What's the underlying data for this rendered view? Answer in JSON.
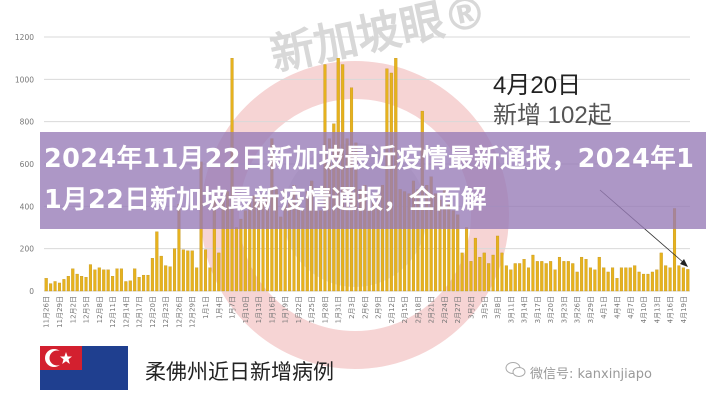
{
  "banner": {
    "title": "2024年11月22日新加坡最近疫情最新通报，2024年11月22日新加坡最新疫情通报，全面解"
  },
  "watermark": {
    "logo_text": "新加坡眼®"
  },
  "annotation": {
    "date": "4月20日",
    "text": "新增 102起"
  },
  "footer": {
    "subtitle": "柔佛州近日新增病例",
    "wechat_label": "微信号: kanxinjiapo"
  },
  "colors": {
    "bar": "#e6b21e",
    "bar_edge": "#b98a10",
    "banner": "#967ab6",
    "flag_red": "#d3202f",
    "flag_blue": "#1f3f8f"
  },
  "chart_data": {
    "type": "bar",
    "title": "",
    "xlabel": "",
    "ylabel": "",
    "ylim": [
      0,
      1200
    ],
    "y_ticks": [
      0,
      200,
      400,
      600,
      800,
      1000,
      1200
    ],
    "grid": true,
    "legend": "none",
    "x_tick_labels": [
      "11月26日",
      "11月29日",
      "12月2日",
      "12月5日",
      "12月8日",
      "12月11日",
      "12月14日",
      "12月17日",
      "12月20日",
      "12月23日",
      "12月26日",
      "12月29日",
      "1月1日",
      "1月4日",
      "1月7日",
      "1月10日",
      "1月13日",
      "1月16日",
      "1月19日",
      "1月22日",
      "1月25日",
      "1月28日",
      "1月31日",
      "2月3日",
      "2月6日",
      "2月9日",
      "2月12日",
      "2月15日",
      "2月18日",
      "2月21日",
      "2月24日",
      "2月27日",
      "3月2日",
      "3月5日",
      "3月8日",
      "3月11日",
      "3月14日",
      "3月17日",
      "3月20日",
      "3月23日",
      "3月26日",
      "3月29日",
      "4月1日",
      "4月4日",
      "4月7日",
      "4月10日",
      "4月13日",
      "4月16日",
      "4月19日"
    ],
    "categories": [
      "11月26日",
      "11月27日",
      "11月28日",
      "11月29日",
      "11月30日",
      "12月1日",
      "12月2日",
      "12月3日",
      "12月4日",
      "12月5日",
      "12月6日",
      "12月7日",
      "12月8日",
      "12月9日",
      "12月10日",
      "12月11日",
      "12月12日",
      "12月13日",
      "12月14日",
      "12月15日",
      "12月16日",
      "12月17日",
      "12月18日",
      "12月19日",
      "12月20日",
      "12月21日",
      "12月22日",
      "12月23日",
      "12月24日",
      "12月25日",
      "12月26日",
      "12月27日",
      "12月28日",
      "12月29日",
      "12月30日",
      "12月31日",
      "1月1日",
      "1月2日",
      "1月3日",
      "1月4日",
      "1月5日",
      "1月6日",
      "1月7日",
      "1月8日",
      "1月9日",
      "1月10日",
      "1月11日",
      "1月12日",
      "1月13日",
      "1月14日",
      "1月15日",
      "1月16日",
      "1月17日",
      "1月18日",
      "1月19日",
      "1月20日",
      "1月21日",
      "1月22日",
      "1月23日",
      "1月24日",
      "1月25日",
      "1月26日",
      "1月27日",
      "1月28日",
      "1月29日",
      "1月30日",
      "1月31日",
      "2月1日",
      "2月2日",
      "2月3日",
      "2月4日",
      "2月5日",
      "2月6日",
      "2月7日",
      "2月8日",
      "2月9日",
      "2月10日",
      "2月11日",
      "2月12日",
      "2月13日",
      "2月14日",
      "2月15日",
      "2月16日",
      "2月17日",
      "2月18日",
      "2月19日",
      "2月20日",
      "2月21日",
      "2月22日",
      "2月23日",
      "2月24日",
      "2月25日",
      "2月26日",
      "2月27日",
      "2月28日",
      "3月1日",
      "3月2日",
      "3月3日",
      "3月4日",
      "3月5日",
      "3月6日",
      "3月7日",
      "3月8日",
      "3月9日",
      "3月10日",
      "3月11日",
      "3月12日",
      "3月13日",
      "3月14日",
      "3月15日",
      "3月16日",
      "3月17日",
      "3月18日",
      "3月19日",
      "3月20日",
      "3月21日",
      "3月22日",
      "3月23日",
      "3月24日",
      "3月25日",
      "3月26日",
      "3月27日",
      "3月28日",
      "3月29日",
      "3月30日",
      "3月31日",
      "4月1日",
      "4月2日",
      "4月3日",
      "4月4日",
      "4月5日",
      "4月6日",
      "4月7日",
      "4月8日",
      "4月9日",
      "4月10日",
      "4月11日",
      "4月12日",
      "4月13日",
      "4月14日",
      "4月15日",
      "4月16日",
      "4月17日",
      "4月18日",
      "4月19日",
      "4月20日"
    ],
    "values": [
      60,
      35,
      45,
      38,
      55,
      70,
      105,
      80,
      70,
      65,
      125,
      100,
      110,
      100,
      100,
      70,
      105,
      105,
      45,
      48,
      105,
      65,
      75,
      75,
      155,
      280,
      165,
      120,
      115,
      200,
      410,
      195,
      190,
      190,
      110,
      610,
      195,
      110,
      450,
      180,
      430,
      470,
      1100,
      300,
      340,
      380,
      420,
      450,
      430,
      460,
      440,
      720,
      480,
      350,
      480,
      420,
      500,
      460,
      380,
      470,
      520,
      420,
      380,
      1070,
      720,
      790,
      1100,
      1070,
      720,
      960,
      700,
      480,
      500,
      450,
      420,
      460,
      500,
      1050,
      1030,
      1100,
      480,
      470,
      460,
      520,
      480,
      850,
      500,
      540,
      460,
      430,
      480,
      420,
      380,
      360,
      180,
      300,
      140,
      250,
      160,
      180,
      130,
      170,
      260,
      180,
      120,
      100,
      130,
      130,
      150,
      110,
      170,
      140,
      140,
      130,
      140,
      100,
      160,
      140,
      140,
      130,
      90,
      160,
      150,
      110,
      100,
      160,
      110,
      90,
      110,
      60,
      110,
      110,
      110,
      120,
      90,
      80,
      80,
      90,
      100,
      180,
      120,
      110,
      390,
      120,
      110,
      102
    ]
  }
}
